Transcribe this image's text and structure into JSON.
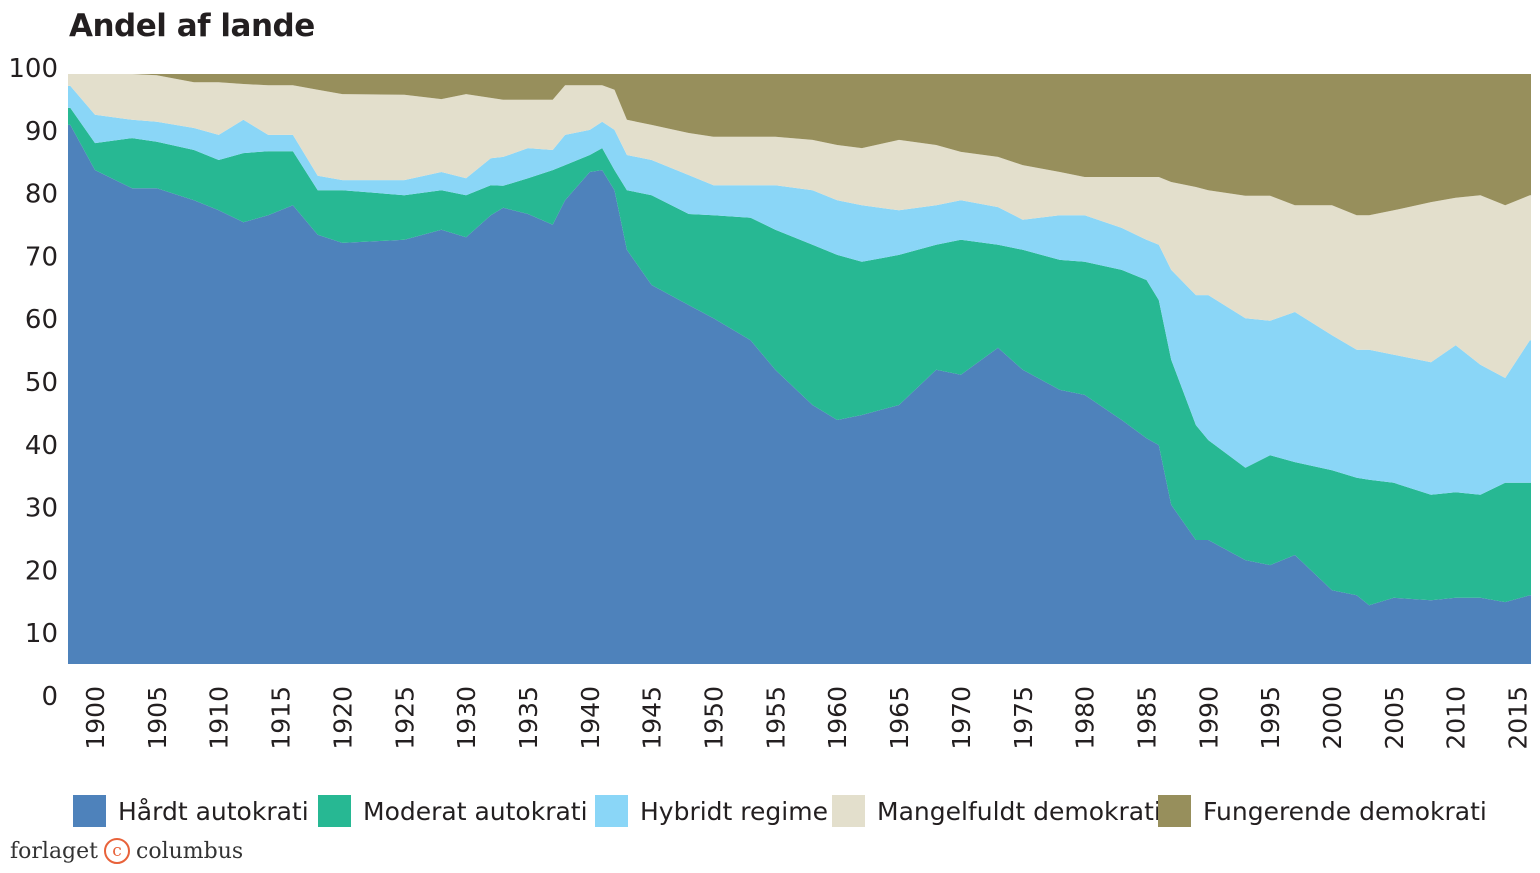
{
  "chart_data": {
    "type": "area",
    "stacked": true,
    "title": "Andel af lande",
    "xlabel": "",
    "ylabel": "",
    "ylim": [
      0,
      100
    ],
    "yticks": [
      0,
      10,
      20,
      30,
      40,
      50,
      60,
      70,
      80,
      90,
      100
    ],
    "xticks": [
      1900,
      1905,
      1910,
      1915,
      1920,
      1925,
      1930,
      1935,
      1940,
      1945,
      1950,
      1955,
      1960,
      1965,
      1970,
      1975,
      1980,
      1985,
      1990,
      1995,
      2000,
      2005,
      2010,
      2015
    ],
    "grid": false,
    "legend_position": "bottom",
    "x": [
      1898,
      1900,
      1903,
      1905,
      1908,
      1910,
      1912,
      1914,
      1916,
      1918,
      1920,
      1925,
      1928,
      1930,
      1932,
      1933,
      1935,
      1937,
      1938,
      1940,
      1941,
      1942,
      1943,
      1945,
      1948,
      1950,
      1953,
      1955,
      1958,
      1960,
      1962,
      1965,
      1968,
      1970,
      1973,
      1975,
      1978,
      1980,
      1983,
      1985,
      1986,
      1987,
      1989,
      1990,
      1993,
      1995,
      1997,
      2000,
      2002,
      2003,
      2005,
      2008,
      2010,
      2012,
      2014,
      2016
    ],
    "series": [
      {
        "name": "Hårdt autokrati",
        "color": "#4e82bb",
        "values": [
          91.9,
          84.7,
          81.8,
          81.8,
          79.9,
          78.3,
          76.4,
          77.5,
          79.1,
          74.4,
          73.1,
          73.6,
          75.2,
          74.0,
          77.5,
          78.7,
          77.7,
          76.0,
          79.9,
          84.4,
          84.7,
          81.5,
          72.0,
          66.4,
          63.2,
          61.1,
          57.6,
          52.9,
          47.3,
          44.9,
          45.7,
          47.3,
          52.9,
          52.1,
          56.4,
          52.9,
          49.7,
          48.9,
          44.9,
          42.0,
          40.9,
          31.4,
          25.8,
          25.8,
          22.6,
          21.8,
          23.4,
          17.8,
          17.0,
          15.4,
          16.6,
          16.2,
          16.6,
          16.6,
          15.9,
          17.0
        ]
      },
      {
        "name": "Moderat autokrati",
        "color": "#27b893",
        "values": [
          2.7,
          4.3,
          8.0,
          7.4,
          8.0,
          8.0,
          11.0,
          10.2,
          8.6,
          7.1,
          8.4,
          7.1,
          6.3,
          6.7,
          4.8,
          3.5,
          5.7,
          8.7,
          5.6,
          2.7,
          3.5,
          3.2,
          9.5,
          14.3,
          14.5,
          16.4,
          19.5,
          22.3,
          25.5,
          26.3,
          24.4,
          23.9,
          19.9,
          21.5,
          16.4,
          19.1,
          20.7,
          21.2,
          23.9,
          25.2,
          23.1,
          23.1,
          18.3,
          15.9,
          14.7,
          17.5,
          14.8,
          19.1,
          18.7,
          20.0,
          18.3,
          16.8,
          16.8,
          16.4,
          19.0,
          17.9
        ]
      },
      {
        "name": "Hybridt regime",
        "color": "#8ad6f7",
        "values": [
          3.5,
          4.5,
          2.9,
          3.2,
          3.5,
          4.0,
          5.3,
          2.6,
          2.6,
          2.3,
          1.6,
          2.4,
          2.9,
          2.7,
          4.3,
          4.6,
          4.8,
          3.2,
          4.8,
          4.0,
          4.2,
          6.4,
          5.6,
          5.6,
          6.2,
          4.8,
          5.2,
          7.1,
          8.7,
          8.7,
          9.0,
          7.1,
          6.3,
          6.3,
          6.0,
          4.8,
          7.1,
          7.4,
          6.7,
          6.4,
          8.8,
          14.3,
          20.7,
          23.1,
          23.8,
          21.4,
          23.9,
          21.5,
          20.4,
          20.7,
          20.4,
          21.1,
          23.4,
          20.7,
          16.7,
          22.7
        ]
      },
      {
        "name": "Mangelfuldt demokrati",
        "color": "#e3dfcc",
        "values": [
          1.9,
          6.5,
          7.3,
          7.4,
          7.3,
          8.4,
          5.7,
          7.9,
          7.9,
          13.7,
          13.7,
          13.6,
          11.6,
          13.4,
          9.6,
          9.1,
          7.7,
          8.0,
          7.9,
          7.1,
          5.8,
          6.4,
          5.6,
          5.6,
          6.7,
          7.7,
          7.7,
          7.7,
          8.0,
          8.8,
          9.1,
          11.2,
          9.6,
          7.7,
          8.0,
          8.7,
          6.9,
          6.1,
          8.1,
          10.0,
          10.8,
          14.0,
          17.2,
          16.7,
          19.5,
          19.9,
          17.0,
          20.7,
          21.4,
          21.4,
          23.0,
          25.5,
          23.5,
          27.0,
          27.5,
          23.1
        ]
      },
      {
        "name": "Fungerende demokrati",
        "color": "#978f5c",
        "values": [
          0,
          0,
          0,
          0.2,
          1.3,
          1.3,
          1.6,
          1.8,
          1.8,
          2.5,
          3.2,
          3.3,
          4.0,
          3.2,
          3.8,
          4.1,
          4.1,
          4.1,
          1.8,
          1.8,
          1.8,
          2.5,
          7.3,
          8.1,
          9.4,
          10.0,
          10.0,
          10.0,
          10.5,
          11.3,
          11.8,
          10.5,
          11.3,
          12.4,
          13.2,
          14.5,
          15.6,
          16.4,
          16.4,
          16.4,
          16.4,
          17.2,
          18.0,
          18.5,
          19.4,
          19.4,
          20.9,
          20.9,
          22.5,
          22.5,
          21.7,
          20.4,
          19.7,
          19.3,
          20.9,
          19.3
        ]
      }
    ]
  },
  "legend": [
    {
      "label": "Hårdt autokrati",
      "color": "#4e82bb"
    },
    {
      "label": "Moderat autokrati",
      "color": "#27b893"
    },
    {
      "label": "Hybridt regime",
      "color": "#8ad6f7"
    },
    {
      "label": "Mangelfuldt demokrati",
      "color": "#e3dfcc"
    },
    {
      "label": "Fungerende demokrati",
      "color": "#978f5c"
    }
  ],
  "footer": {
    "publisher_left": "forlaget",
    "publisher_mark": "c",
    "publisher_right": "columbus"
  }
}
